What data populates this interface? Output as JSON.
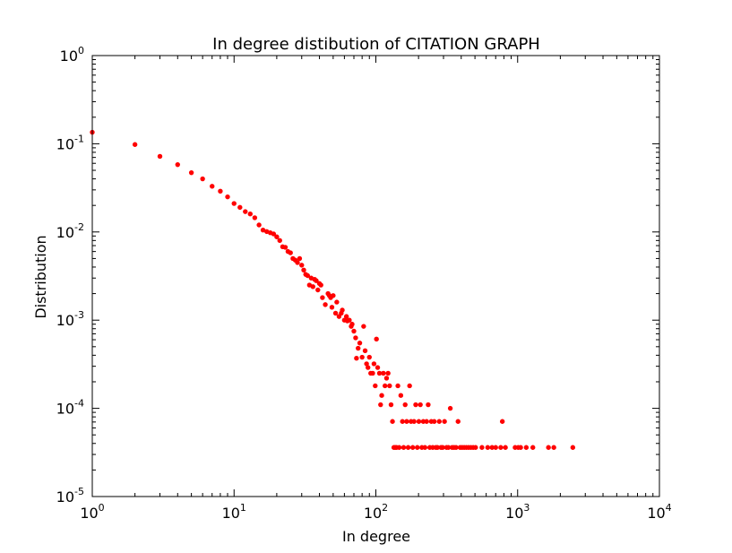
{
  "chart_data": {
    "type": "scatter",
    "title": "In degree distibution of CITATION GRAPH",
    "xlabel": "In degree",
    "ylabel": "Distribution",
    "xscale": "log",
    "yscale": "log",
    "xlim": [
      1,
      10000
    ],
    "ylim": [
      1e-05,
      1
    ],
    "grid": false,
    "legend": "none",
    "marker_color": "#ff0000",
    "x_ticks": [
      {
        "base": "10",
        "exp": "0",
        "value": 1
      },
      {
        "base": "10",
        "exp": "1",
        "value": 10
      },
      {
        "base": "10",
        "exp": "2",
        "value": 100
      },
      {
        "base": "10",
        "exp": "3",
        "value": 1000
      },
      {
        "base": "10",
        "exp": "4",
        "value": 10000
      }
    ],
    "y_ticks": [
      {
        "base": "10",
        "exp": "0",
        "value": 1
      },
      {
        "base": "10",
        "exp": "-1",
        "value": 0.1
      },
      {
        "base": "10",
        "exp": "-2",
        "value": 0.01
      },
      {
        "base": "10",
        "exp": "-3",
        "value": 0.001
      },
      {
        "base": "10",
        "exp": "-4",
        "value": 0.0001
      },
      {
        "base": "10",
        "exp": "-5",
        "value": 1e-05
      }
    ],
    "points": [
      [
        1,
        0.135
      ],
      [
        2,
        0.098
      ],
      [
        3,
        0.072
      ],
      [
        4,
        0.058
      ],
      [
        5,
        0.047
      ],
      [
        6,
        0.04
      ],
      [
        7,
        0.033
      ],
      [
        8,
        0.029
      ],
      [
        9,
        0.025
      ],
      [
        10,
        0.021
      ],
      [
        11,
        0.019
      ],
      [
        12,
        0.017
      ],
      [
        13,
        0.016
      ],
      [
        14,
        0.0145
      ],
      [
        15,
        0.012
      ],
      [
        16,
        0.0105
      ],
      [
        17,
        0.0101
      ],
      [
        18,
        0.0098
      ],
      [
        19,
        0.0095
      ],
      [
        20,
        0.0088
      ],
      [
        21,
        0.008
      ],
      [
        22,
        0.0068
      ],
      [
        23,
        0.0067
      ],
      [
        24,
        0.006
      ],
      [
        25,
        0.0058
      ],
      [
        26,
        0.005
      ],
      [
        27,
        0.0048
      ],
      [
        28,
        0.0045
      ],
      [
        29,
        0.005
      ],
      [
        30,
        0.0042
      ],
      [
        31,
        0.0037
      ],
      [
        32,
        0.0033
      ],
      [
        33,
        0.0032
      ],
      [
        34,
        0.0025
      ],
      [
        35,
        0.003
      ],
      [
        36,
        0.0024
      ],
      [
        37,
        0.0029
      ],
      [
        38,
        0.0028
      ],
      [
        39,
        0.0022
      ],
      [
        40,
        0.0026
      ],
      [
        41,
        0.0025
      ],
      [
        42,
        0.0018
      ],
      [
        44,
        0.0015
      ],
      [
        46,
        0.002
      ],
      [
        47,
        0.0019
      ],
      [
        48,
        0.0018
      ],
      [
        49,
        0.0014
      ],
      [
        50,
        0.0019
      ],
      [
        52,
        0.0012
      ],
      [
        53,
        0.0016
      ],
      [
        55,
        0.0011
      ],
      [
        57,
        0.0012
      ],
      [
        58,
        0.0013
      ],
      [
        60,
        0.001
      ],
      [
        62,
        0.0011
      ],
      [
        63,
        0.00098
      ],
      [
        65,
        0.001
      ],
      [
        67,
        0.00085
      ],
      [
        68,
        0.0009
      ],
      [
        70,
        0.00075
      ],
      [
        72,
        0.00063
      ],
      [
        73,
        0.00037
      ],
      [
        75,
        0.00048
      ],
      [
        77,
        0.00055
      ],
      [
        80,
        0.00038
      ],
      [
        82,
        0.00085
      ],
      [
        84,
        0.00045
      ],
      [
        86,
        0.00032
      ],
      [
        88,
        0.00029
      ],
      [
        90,
        0.00038
      ],
      [
        92,
        0.00025
      ],
      [
        95,
        0.00025
      ],
      [
        97,
        0.00032
      ],
      [
        99,
        0.00018
      ],
      [
        101,
        0.00061
      ],
      [
        103,
        0.00029
      ],
      [
        106,
        0.00025
      ],
      [
        108,
        0.00011
      ],
      [
        110,
        0.00014
      ],
      [
        113,
        0.00025
      ],
      [
        116,
        0.00018
      ],
      [
        119,
        0.00022
      ],
      [
        122,
        0.00025
      ],
      [
        125,
        0.00018
      ],
      [
        128,
        0.00011
      ],
      [
        131,
        7.1e-05
      ],
      [
        134,
        3.6e-05
      ],
      [
        137,
        3.6e-05
      ],
      [
        140,
        3.6e-05
      ],
      [
        143,
        0.00018
      ],
      [
        146,
        3.6e-05
      ],
      [
        150,
        0.00014
      ],
      [
        154,
        7.1e-05
      ],
      [
        157,
        3.6e-05
      ],
      [
        161,
        0.00011
      ],
      [
        165,
        7.1e-05
      ],
      [
        169,
        3.6e-05
      ],
      [
        173,
        0.00018
      ],
      [
        177,
        7.1e-05
      ],
      [
        182,
        3.6e-05
      ],
      [
        186,
        7.1e-05
      ],
      [
        191,
        0.00011
      ],
      [
        196,
        3.6e-05
      ],
      [
        201,
        7.1e-05
      ],
      [
        206,
        0.00011
      ],
      [
        211,
        3.6e-05
      ],
      [
        216,
        7.1e-05
      ],
      [
        222,
        3.6e-05
      ],
      [
        228,
        7.1e-05
      ],
      [
        234,
        0.00011
      ],
      [
        240,
        3.6e-05
      ],
      [
        246,
        7.1e-05
      ],
      [
        252,
        3.6e-05
      ],
      [
        258,
        7.1e-05
      ],
      [
        265,
        3.6e-05
      ],
      [
        272,
        3.6e-05
      ],
      [
        280,
        7.1e-05
      ],
      [
        288,
        3.6e-05
      ],
      [
        296,
        3.6e-05
      ],
      [
        305,
        7.1e-05
      ],
      [
        315,
        3.6e-05
      ],
      [
        325,
        3.6e-05
      ],
      [
        335,
        0.0001
      ],
      [
        345,
        3.6e-05
      ],
      [
        356,
        3.6e-05
      ],
      [
        368,
        3.6e-05
      ],
      [
        380,
        7.1e-05
      ],
      [
        393,
        3.6e-05
      ],
      [
        406,
        3.6e-05
      ],
      [
        420,
        3.6e-05
      ],
      [
        435,
        3.6e-05
      ],
      [
        451,
        3.6e-05
      ],
      [
        468,
        3.6e-05
      ],
      [
        486,
        3.6e-05
      ],
      [
        505,
        3.6e-05
      ],
      [
        560,
        3.6e-05
      ],
      [
        615,
        3.6e-05
      ],
      [
        660,
        3.6e-05
      ],
      [
        700,
        3.6e-05
      ],
      [
        760,
        3.6e-05
      ],
      [
        780,
        7.1e-05
      ],
      [
        820,
        3.6e-05
      ],
      [
        960,
        3.6e-05
      ],
      [
        1010,
        3.6e-05
      ],
      [
        1050,
        3.6e-05
      ],
      [
        1150,
        3.6e-05
      ],
      [
        1280,
        3.6e-05
      ],
      [
        1650,
        3.6e-05
      ],
      [
        1800,
        3.6e-05
      ],
      [
        2450,
        3.6e-05
      ]
    ]
  }
}
